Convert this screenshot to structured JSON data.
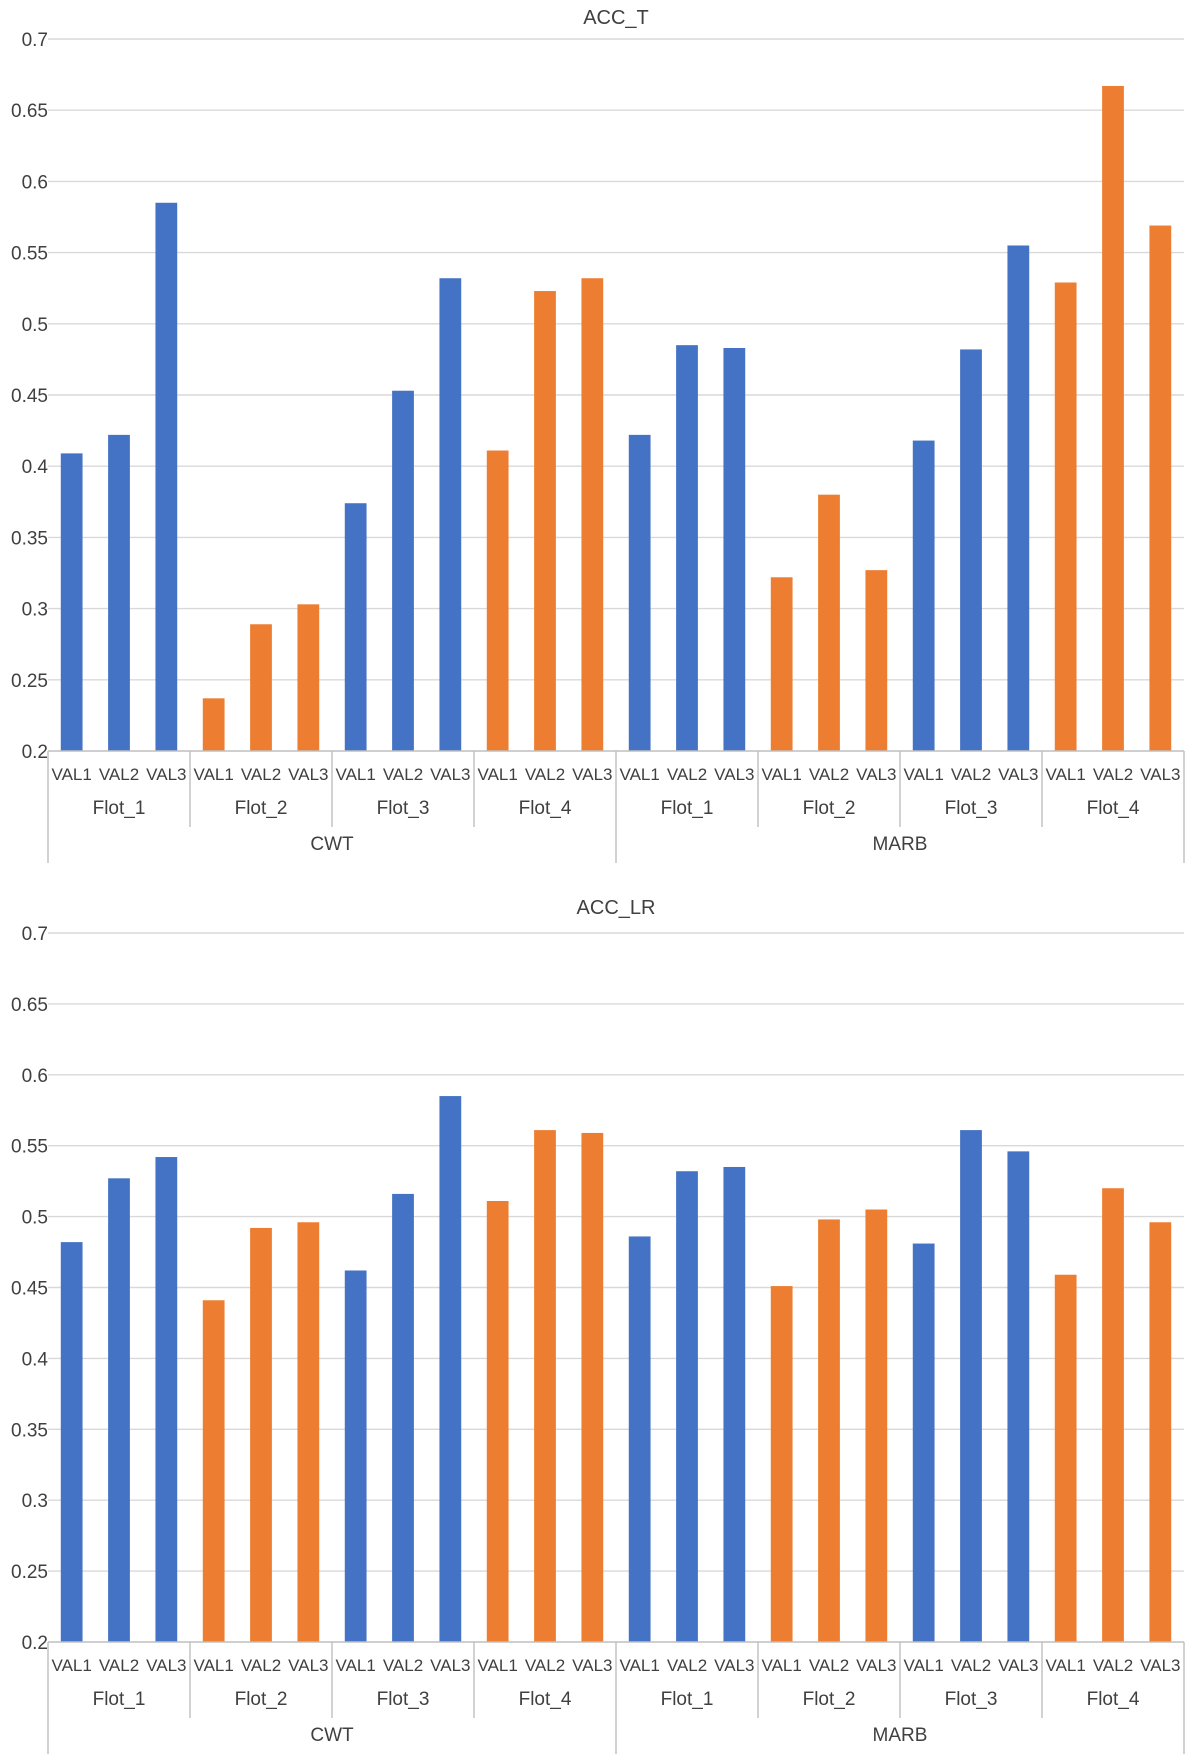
{
  "colors": {
    "blue": "#4472c4",
    "orange": "#ed7d31"
  },
  "chart_data": [
    {
      "type": "bar",
      "title": "ACC_T",
      "ylim": [
        0.2,
        0.7
      ],
      "yticks": [
        "0.2",
        "0.25",
        "0.3",
        "0.35",
        "0.4",
        "0.45",
        "0.5",
        "0.55",
        "0.6",
        "0.65",
        "0.7"
      ],
      "grid": true,
      "level1": [
        "VAL1",
        "VAL2",
        "VAL3"
      ],
      "level2": [
        "Flot_1",
        "Flot_2",
        "Flot_3",
        "Flot_4"
      ],
      "level3": [
        "CWT",
        "MARB"
      ],
      "values": [
        0.409,
        0.422,
        0.585,
        0.237,
        0.289,
        0.303,
        0.374,
        0.453,
        0.532,
        0.411,
        0.523,
        0.532,
        0.422,
        0.485,
        0.483,
        0.322,
        0.38,
        0.327,
        0.418,
        0.482,
        0.555,
        0.529,
        0.667,
        0.569
      ],
      "bar_colors": [
        "blue",
        "blue",
        "blue",
        "orange",
        "orange",
        "orange",
        "blue",
        "blue",
        "blue",
        "orange",
        "orange",
        "orange",
        "blue",
        "blue",
        "blue",
        "orange",
        "orange",
        "orange",
        "blue",
        "blue",
        "blue",
        "orange",
        "orange",
        "orange"
      ]
    },
    {
      "type": "bar",
      "title": "ACC_LR",
      "ylim": [
        0.2,
        0.7
      ],
      "yticks": [
        "0.2",
        "0.25",
        "0.3",
        "0.35",
        "0.4",
        "0.45",
        "0.5",
        "0.55",
        "0.6",
        "0.65",
        "0.7"
      ],
      "grid": true,
      "level1": [
        "VAL1",
        "VAL2",
        "VAL3"
      ],
      "level2": [
        "Flot_1",
        "Flot_2",
        "Flot_3",
        "Flot_4"
      ],
      "level3": [
        "CWT",
        "MARB"
      ],
      "values": [
        0.482,
        0.527,
        0.542,
        0.441,
        0.492,
        0.496,
        0.462,
        0.516,
        0.585,
        0.511,
        0.561,
        0.559,
        0.486,
        0.532,
        0.535,
        0.451,
        0.498,
        0.505,
        0.481,
        0.561,
        0.546,
        0.459,
        0.52,
        0.496
      ],
      "bar_colors": [
        "blue",
        "blue",
        "blue",
        "orange",
        "orange",
        "orange",
        "blue",
        "blue",
        "blue",
        "orange",
        "orange",
        "orange",
        "blue",
        "blue",
        "blue",
        "orange",
        "orange",
        "orange",
        "blue",
        "blue",
        "blue",
        "orange",
        "orange",
        "orange"
      ]
    }
  ]
}
